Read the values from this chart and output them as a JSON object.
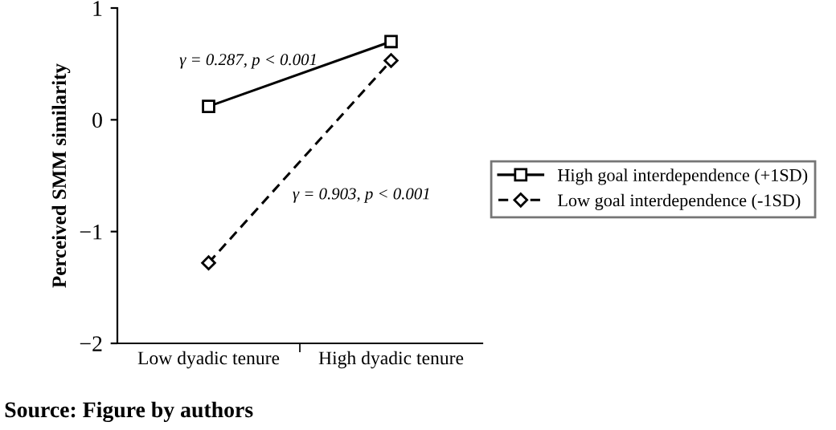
{
  "chart_data": {
    "type": "line",
    "ylabel": "Perceived SMM similarity",
    "categories": [
      "Low dyadic tenure",
      "High dyadic tenure"
    ],
    "series": [
      {
        "name": "High goal interdependence (+1SD)",
        "color": "#000000",
        "values": [
          0.12,
          0.7
        ],
        "marker": "square",
        "line_style": "solid"
      },
      {
        "name": "Low goal interdependence (-1SD)",
        "color": "#000000",
        "values": [
          -1.28,
          0.53
        ],
        "marker": "diamond",
        "line_style": "dashed"
      }
    ],
    "ylim": [
      -2,
      1
    ],
    "yticks": [
      {
        "value": -2,
        "label": "−2"
      },
      {
        "value": -1,
        "label": "−1"
      },
      0,
      1
    ],
    "grid": false,
    "legend": "right",
    "annotations": [
      "γ = 0.287, p < 0.001",
      "γ = 0.903, p < 0.001",
      "Source: Figure by authors"
    ]
  }
}
